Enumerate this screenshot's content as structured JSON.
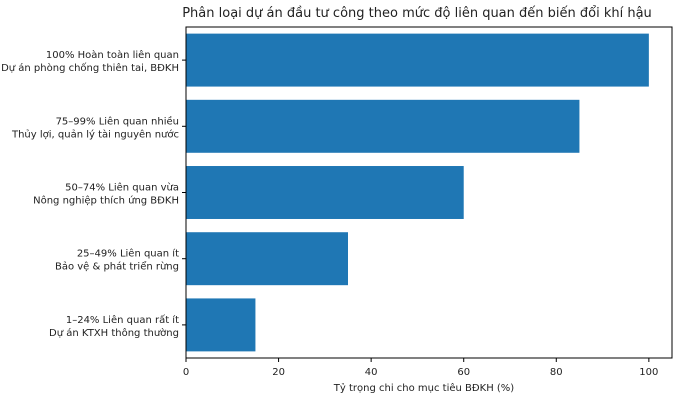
{
  "chart_data": {
    "type": "bar",
    "orientation": "horizontal",
    "title": "Phân loại dự án đầu tư công theo mức độ liên quan đến biến đổi khí hậu",
    "xlabel": "Tỷ trọng chi cho mục tiêu BĐKH (%)",
    "ylabel": "",
    "xlim": [
      0,
      105
    ],
    "xticks": [
      0,
      20,
      40,
      60,
      80,
      100
    ],
    "grid": false,
    "bar_color": "#1f77b4",
    "categories": [
      {
        "line1": "100%  Hoàn toàn liên quan",
        "line2": "Dự án phòng chống thiên tai, BĐKH"
      },
      {
        "line1": "75–99%  Liên quan nhiều",
        "line2": "Thủy lợi, quản lý tài nguyên nước"
      },
      {
        "line1": "50–74%  Liên quan vừa",
        "line2": "Nông nghiệp thích ứng BĐKH"
      },
      {
        "line1": "25–49%  Liên quan ít",
        "line2": "Bảo vệ & phát triển rừng"
      },
      {
        "line1": "1–24%   Liên quan rất ít",
        "line2": "Dự án KTXH thông thường"
      }
    ],
    "values": [
      100,
      85,
      60,
      35,
      15
    ]
  }
}
